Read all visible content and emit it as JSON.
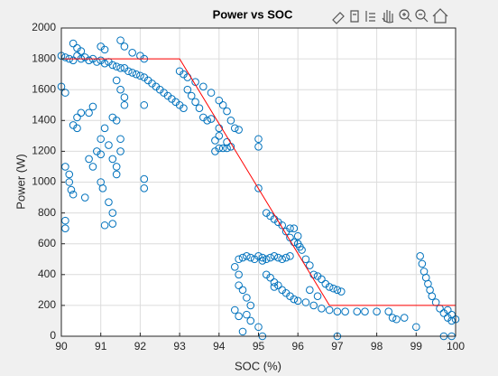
{
  "chart_data": {
    "type": "scatter",
    "title": "Power vs SOC",
    "x_label": "SOC (%)",
    "y_label": "Power (W)",
    "xlim": [
      90,
      100
    ],
    "ylim": [
      0,
      2000
    ],
    "xticks": [
      90,
      91,
      92,
      93,
      94,
      95,
      96,
      97,
      98,
      99,
      100
    ],
    "yticks": [
      0,
      200,
      400,
      600,
      800,
      1000,
      1200,
      1400,
      1600,
      1800,
      2000
    ],
    "grid": true,
    "series": [
      {
        "type": "scatter",
        "color": "#0072bd",
        "x": [
          90,
          90.1,
          90.2,
          90.3,
          90.4,
          90.5,
          90.6,
          90.7,
          90.8,
          90.9,
          91,
          91.1,
          91.2,
          91.3,
          91.4,
          91.5,
          91.6,
          91.7,
          91.8,
          91.9,
          92,
          92.1,
          92.2,
          92.3,
          92.4,
          92.5,
          92.6,
          92.7,
          92.8,
          92.9,
          93,
          93.1,
          90.3,
          90.4,
          90.5,
          91,
          91.1,
          91.5,
          91.6,
          91.8,
          92,
          92.1,
          90,
          90.1,
          90.1,
          90.2,
          90.2,
          90.25,
          90.3,
          90.1,
          90.1,
          90.3,
          90.4,
          90.5,
          90.4,
          90.7,
          90.8,
          90.6,
          90.7,
          90.8,
          90.9,
          91,
          91,
          91,
          91.05,
          91.1,
          91.2,
          91.2,
          91.3,
          91.1,
          91.3,
          91.4,
          91.5,
          91.5,
          91.3,
          91.4,
          91.6,
          91.5,
          91.6,
          91.4,
          92.1,
          92.1,
          92.1,
          91.3,
          91.4,
          93,
          93.1,
          93.2,
          93.4,
          93.6,
          93.8,
          94,
          94.1,
          94.2,
          94.3,
          94.4,
          94.5,
          93.2,
          93.3,
          93.4,
          93.5,
          93.6,
          93.8,
          94,
          93.9,
          94,
          94.1,
          94.2,
          94.3,
          93.7,
          94,
          93.9,
          94.2,
          95,
          95,
          95,
          95.2,
          95.3,
          95.4,
          95.5,
          95.6,
          95.7,
          95.8,
          95.9,
          96,
          96.05,
          95.8,
          95.9,
          96,
          96.1,
          96.2,
          96.3,
          96.4,
          96.5,
          96.6,
          96.7,
          96.8,
          96.9,
          97,
          97.1,
          94.5,
          94.6,
          94.7,
          94.8,
          94.9,
          95,
          95.1,
          95.2,
          95.3,
          95.4,
          95.5,
          95.6,
          95.7,
          95.8,
          94.4,
          94.5,
          94.5,
          94.6,
          94.7,
          94.8,
          94.7,
          94.8,
          94.6,
          94.4,
          94.5,
          95.2,
          95.3,
          95.4,
          95.5,
          95.6,
          95.7,
          95.8,
          95.9,
          96,
          96.2,
          96.4,
          96.6,
          96.8,
          97,
          97.2,
          97.5,
          97.7,
          98,
          98.3,
          98.4,
          98.5,
          98.7,
          97,
          99.7,
          99.9,
          95,
          95.1,
          95.1,
          95.4,
          96.3,
          96.5,
          99.1,
          99.15,
          99.2,
          99.25,
          99.3,
          99.35,
          99.4,
          99.5,
          99.6,
          99.7,
          99.8,
          99.9,
          100,
          99,
          99.8,
          99.9
        ],
        "values": [
          1820,
          1810,
          1800,
          1790,
          1820,
          1800,
          1810,
          1790,
          1800,
          1780,
          1790,
          1770,
          1780,
          1760,
          1750,
          1740,
          1740,
          1720,
          1710,
          1700,
          1690,
          1680,
          1660,
          1640,
          1620,
          1600,
          1580,
          1560,
          1540,
          1520,
          1500,
          1480,
          1900,
          1870,
          1850,
          1880,
          1860,
          1920,
          1880,
          1840,
          1820,
          1800,
          1620,
          1580,
          1100,
          1050,
          1000,
          950,
          920,
          750,
          700,
          1370,
          1420,
          1450,
          1350,
          1450,
          1490,
          900,
          1150,
          1100,
          1200,
          1280,
          1180,
          1000,
          960,
          1350,
          1240,
          870,
          800,
          720,
          730,
          1100,
          1200,
          1280,
          1150,
          1050,
          1500,
          1600,
          1550,
          1660,
          1500,
          1020,
          960,
          1420,
          1400,
          1720,
          1700,
          1680,
          1650,
          1620,
          1580,
          1530,
          1500,
          1460,
          1400,
          1350,
          1340,
          1600,
          1560,
          1520,
          1480,
          1420,
          1410,
          1350,
          1270,
          1220,
          1220,
          1220,
          1230,
          1400,
          1300,
          1200,
          1260,
          1280,
          1230,
          960,
          800,
          780,
          760,
          740,
          720,
          680,
          640,
          610,
          600,
          580,
          700,
          700,
          650,
          560,
          500,
          460,
          400,
          390,
          370,
          340,
          320,
          310,
          300,
          290,
          500,
          510,
          520,
          510,
          500,
          520,
          510,
          500,
          510,
          520,
          510,
          500,
          510,
          520,
          450,
          400,
          330,
          300,
          250,
          200,
          140,
          100,
          30,
          170,
          130,
          400,
          380,
          350,
          330,
          300,
          280,
          260,
          240,
          230,
          220,
          200,
          180,
          170,
          160,
          160,
          160,
          160,
          160,
          160,
          120,
          110,
          120,
          0,
          0,
          0,
          60,
          0,
          490,
          320,
          300,
          260,
          520,
          470,
          420,
          380,
          340,
          300,
          260,
          220,
          180,
          150,
          120,
          100,
          110,
          60,
          170,
          140
        ]
      },
      {
        "type": "line",
        "color": "#ff0000",
        "x": [
          90,
          93,
          96.8,
          100
        ],
        "values": [
          1800,
          1800,
          200,
          200
        ]
      }
    ]
  }
}
